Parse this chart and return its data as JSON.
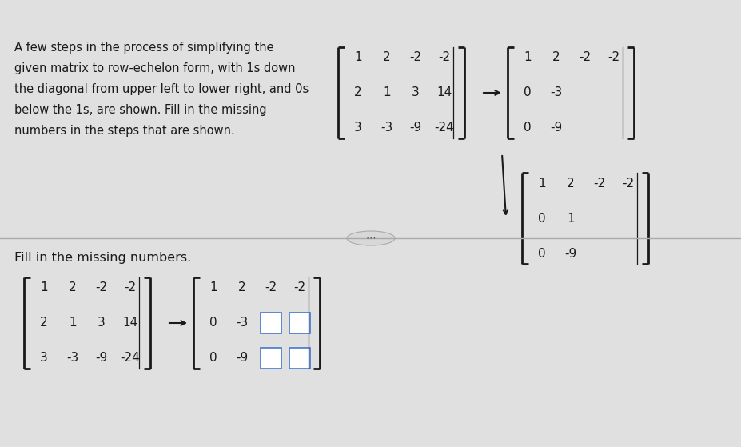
{
  "bg_color_top": "#4ab8d8",
  "bg_color_main": "#e0e0e0",
  "text_color": "#1a1a1a",
  "description_lines": [
    "A few steps in the process of simplifying the",
    "given matrix to row-echelon form, with 1s down",
    "the diagonal from upper left to lower right, and 0s",
    "below the 1s, are shown. Fill in the missing",
    "numbers in the steps that are shown."
  ],
  "fill_label": "Fill in the missing numbers.",
  "matrix1_rows": [
    [
      "1",
      "2",
      "-2",
      "-2"
    ],
    [
      "2",
      "1",
      "3",
      "14"
    ],
    [
      "3",
      "-3",
      "-9",
      "-24"
    ]
  ],
  "matrix2_rows": [
    [
      "1",
      "2",
      "-2",
      "-2"
    ],
    [
      "0",
      "-3",
      "",
      ""
    ],
    [
      "0",
      "-9",
      "",
      ""
    ]
  ],
  "matrix3_rows": [
    [
      "1",
      "2",
      "-2",
      "-2"
    ],
    [
      "0",
      "1",
      "",
      ""
    ],
    [
      "0",
      "-9",
      "",
      ""
    ]
  ],
  "matrix_bottom1_rows": [
    [
      "1",
      "2",
      "-2",
      "-2"
    ],
    [
      "2",
      "1",
      "3",
      "14"
    ],
    [
      "3",
      "-3",
      "-9",
      "-24"
    ]
  ],
  "matrix_bottom2_rows": [
    [
      "1",
      "2",
      "-2",
      "-2"
    ],
    [
      "0",
      "-3",
      "B",
      "B"
    ],
    [
      "0",
      "-9",
      "B",
      "B"
    ]
  ]
}
